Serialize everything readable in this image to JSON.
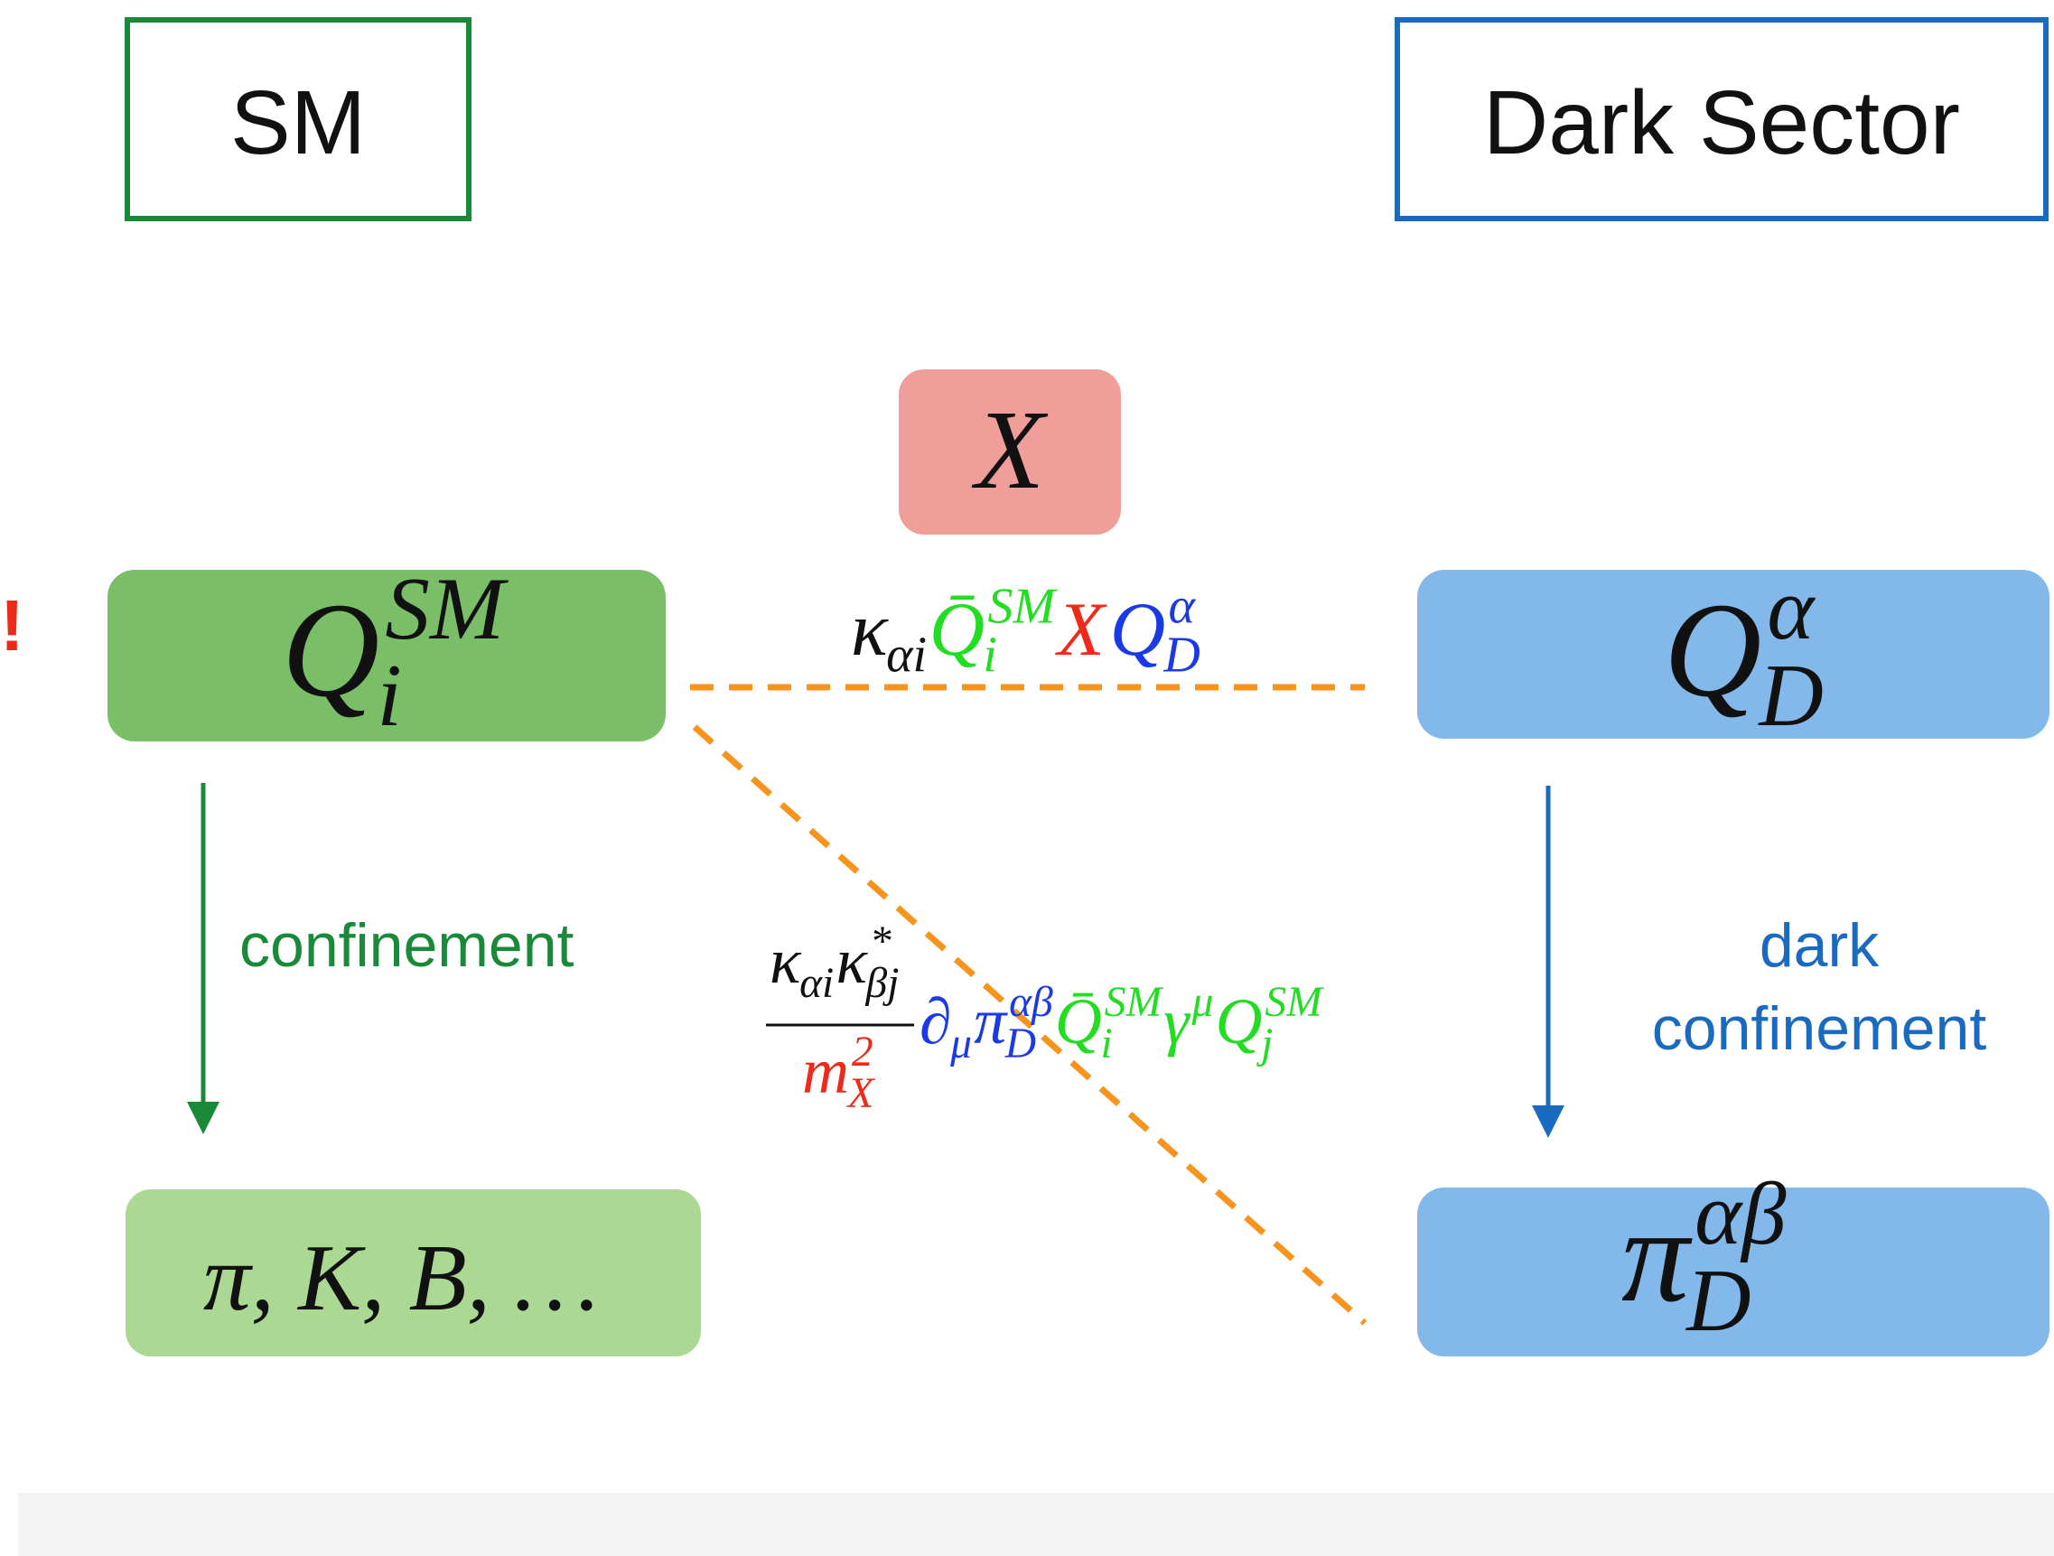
{
  "sm_label": "SM",
  "dark_label": "Dark Sector",
  "mediator": "X",
  "exclaim": "!",
  "sm_quark": {
    "base": "Q",
    "sub": "i",
    "sup": "SM",
    "color": "#111111"
  },
  "dark_quark": {
    "base": "Q",
    "sub": "D",
    "sup": "α",
    "color": "#111111"
  },
  "sm_hadrons": "π, K, B, …",
  "dark_pion": {
    "base": "π",
    "sub": "D",
    "sup": "αβ",
    "color": "#111111"
  },
  "sm_arrow_label": "confinement",
  "dark_arrow_label": [
    "dark",
    "confinement"
  ],
  "coupling": [
    {
      "base": "κ",
      "sub": "αi",
      "color": "#111111"
    },
    {
      "base": "Q̄",
      "sub": "i",
      "sup": "SM",
      "color": "#22dd22"
    },
    {
      "base": "X",
      "color": "#ee2a1a"
    },
    {
      "base": "Q",
      "sub": "D",
      "sup": "α",
      "color": "#1a3ae8"
    }
  ],
  "operator": {
    "numerator": [
      {
        "base": "κ",
        "sub": "αi",
        "color": "#111111"
      },
      {
        "base": "κ",
        "sub": "βj",
        "sup": "*",
        "color": "#111111"
      }
    ],
    "denominator": [
      {
        "base": "m",
        "sub": "X",
        "sup": "2",
        "color": "#ee2a1a"
      }
    ],
    "terms": [
      {
        "base": "∂",
        "sub": "μ",
        "color": "#1a3ae8"
      },
      {
        "base": "π",
        "sub": "D",
        "sup": "αβ",
        "color": "#1a3ae8"
      },
      {
        "base": "Q̄",
        "sub": "i",
        "sup": "SM",
        "color": "#22dd22"
      },
      {
        "base": "γ",
        "sup": "μ",
        "color": "#22dd22"
      },
      {
        "base": "Q",
        "sub": "j",
        "sup": "SM",
        "color": "#22dd22"
      }
    ]
  }
}
